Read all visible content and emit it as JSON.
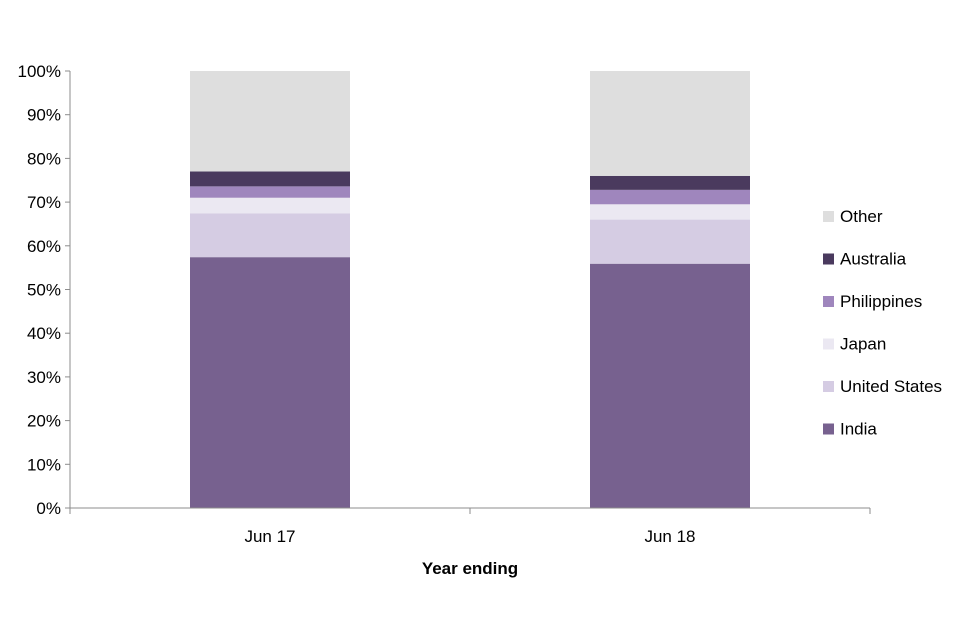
{
  "chart_data": {
    "type": "bar",
    "stacked": true,
    "title": "",
    "xlabel": "Year ending",
    "ylabel": "",
    "ylim": [
      0,
      100
    ],
    "y_ticks": [
      "0%",
      "10%",
      "20%",
      "30%",
      "40%",
      "50%",
      "60%",
      "70%",
      "80%",
      "90%",
      "100%"
    ],
    "categories": [
      "Jun 17",
      "Jun 18"
    ],
    "series": [
      {
        "name": "India",
        "values": [
          57.4,
          55.9
        ],
        "color": "#77618f"
      },
      {
        "name": "United States",
        "values": [
          10.0,
          10.1
        ],
        "color": "#d5cce3"
      },
      {
        "name": "Japan",
        "values": [
          3.6,
          3.5
        ],
        "color": "#ebe8f2"
      },
      {
        "name": "Philippines",
        "values": [
          2.6,
          3.3
        ],
        "color": "#9f86bd"
      },
      {
        "name": "Australia",
        "values": [
          3.4,
          3.2
        ],
        "color": "#4a3a5e"
      },
      {
        "name": "Other",
        "values": [
          23.0,
          24.0
        ],
        "color": "#dedede"
      }
    ],
    "legend": {
      "position": "right",
      "order": [
        "Other",
        "Australia",
        "Philippines",
        "Japan",
        "United States",
        "India"
      ]
    },
    "grid": false
  }
}
